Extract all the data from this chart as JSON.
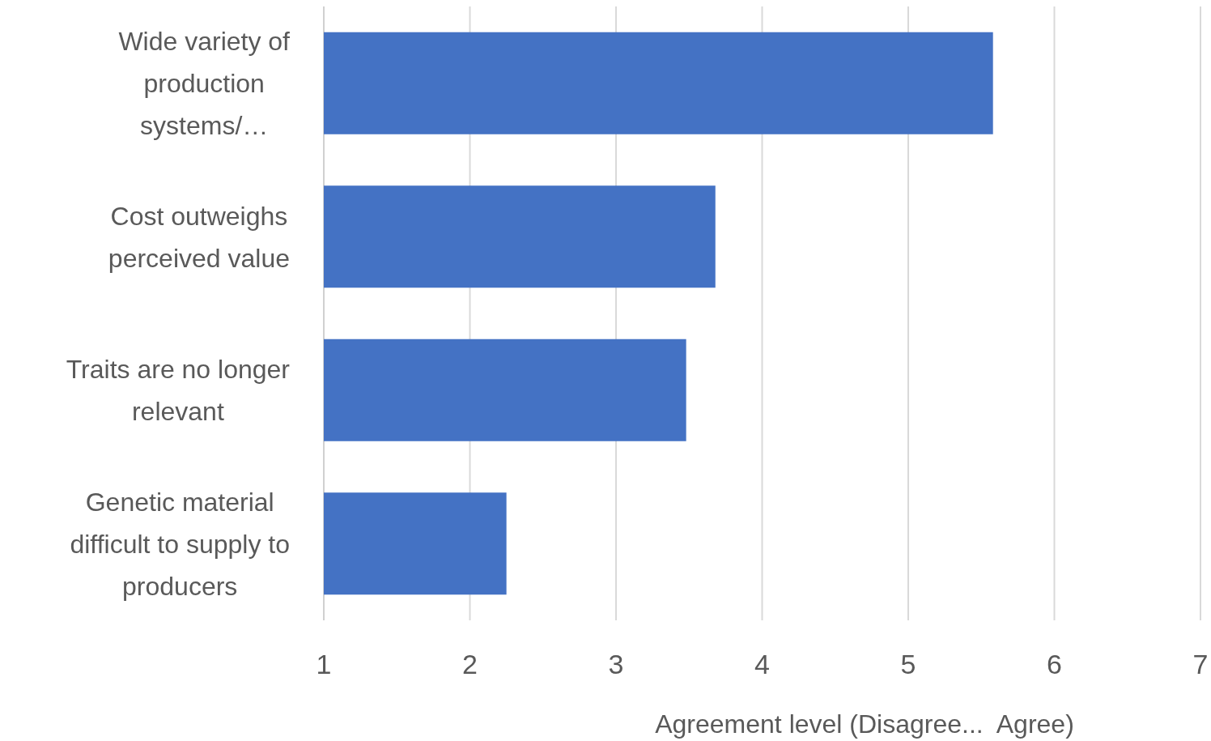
{
  "chart_data": {
    "type": "bar",
    "orientation": "horizontal",
    "categories": [
      "Wide variety of production systems/…",
      "Cost outweighs perceived value",
      "Traits are no longer relevant",
      "Genetic material difficult to supply to producers"
    ],
    "values": [
      5.58,
      3.68,
      3.48,
      2.25
    ],
    "color": "#4472c4",
    "xlim": [
      1,
      7
    ],
    "xticks": [
      1,
      2,
      3,
      4,
      5,
      6,
      7
    ],
    "xlabel": "Agreement level (Disagree...  Agree)",
    "grid": "x"
  }
}
